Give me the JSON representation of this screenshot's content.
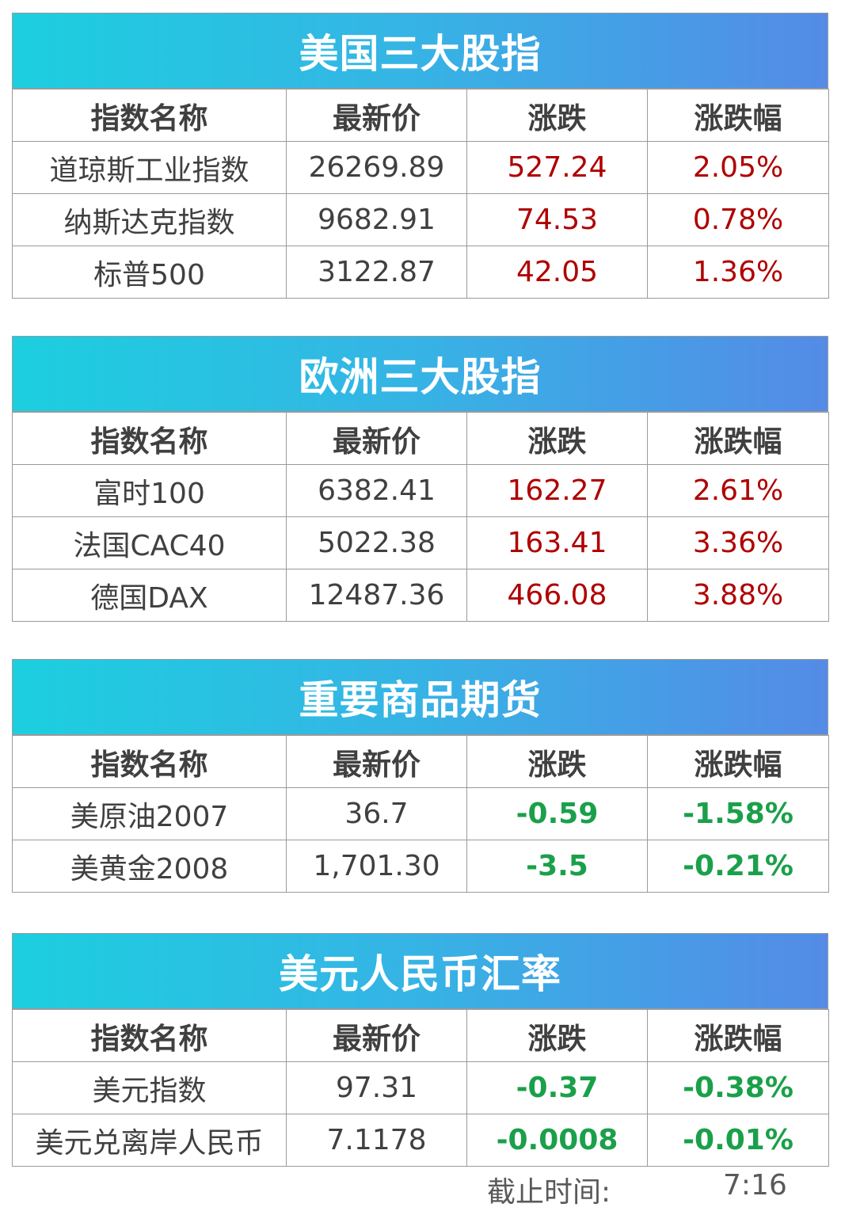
{
  "headers": [
    "指数名称",
    "最新价",
    "涨跌",
    "涨跌幅"
  ],
  "sections": [
    {
      "title": "美国三大股指",
      "rows": [
        {
          "name": "道琼斯工业指数",
          "price": "26269.89",
          "change": "527.24",
          "pct": "2.05%",
          "dir": "up"
        },
        {
          "name": "纳斯达克指数",
          "price": "9682.91",
          "change": "74.53",
          "pct": "0.78%",
          "dir": "up"
        },
        {
          "name": "标普500",
          "price": "3122.87",
          "change": "42.05",
          "pct": "1.36%",
          "dir": "up"
        }
      ]
    },
    {
      "title": "欧洲三大股指",
      "rows": [
        {
          "name": "富时100",
          "price": "6382.41",
          "change": "162.27",
          "pct": "2.61%",
          "dir": "up"
        },
        {
          "name": "法国CAC40",
          "price": "5022.38",
          "change": "163.41",
          "pct": "3.36%",
          "dir": "up"
        },
        {
          "name": "德国DAX",
          "price": "12487.36",
          "change": "466.08",
          "pct": "3.88%",
          "dir": "up"
        }
      ]
    },
    {
      "title": "重要商品期货",
      "rows": [
        {
          "name": "美原油2007",
          "price": "36.7",
          "change": "-0.59",
          "pct": "-1.58%",
          "dir": "down"
        },
        {
          "name": "美黄金2008",
          "price": "1,701.30",
          "change": "-3.5",
          "pct": "-0.21%",
          "dir": "down"
        }
      ]
    },
    {
      "title": "美元人民币汇率",
      "rows": [
        {
          "name": "美元指数",
          "price": "97.31",
          "change": "-0.37",
          "pct": "-0.38%",
          "dir": "down"
        },
        {
          "name": "美元兑离岸人民币",
          "price": "7.1178",
          "change": "-0.0008",
          "pct": "-0.01%",
          "dir": "down"
        }
      ]
    }
  ],
  "footer": {
    "label": "截止时间:",
    "time": "7:16"
  },
  "colors": {
    "up": "#b00000",
    "down": "#1aa04a",
    "banner_start": "#1ccfdf",
    "banner_end": "#548be6",
    "text": "#404040"
  }
}
